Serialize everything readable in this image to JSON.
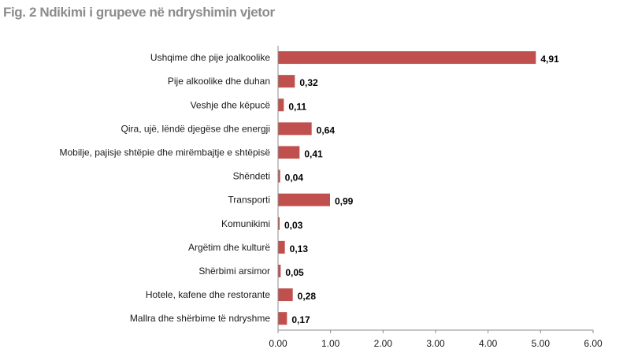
{
  "title": "Fig. 2 Ndikimi i grupeve në ndryshimin vjetor",
  "chart_data": {
    "type": "bar",
    "orientation": "horizontal",
    "categories": [
      "Ushqime dhe pije joalkoolike",
      "Pije alkoolike dhe duhan",
      "Veshje dhe këpucë",
      "Qira, ujë, lëndë djegëse dhe energji",
      "Mobilje, pajisje shtëpie dhe mirëmbajtje e shtëpisë",
      "Shëndeti",
      "Transporti",
      "Komunikimi",
      "Argëtim dhe kulturë",
      "Shërbimi arsimor",
      "Hotele, kafene dhe restorante",
      "Mallra dhe shërbime të ndryshme"
    ],
    "values": [
      4.91,
      0.32,
      0.11,
      0.64,
      0.41,
      0.04,
      0.99,
      0.03,
      0.13,
      0.05,
      0.28,
      0.17
    ],
    "value_labels": [
      "4,91",
      "0,32",
      "0,11",
      "0,64",
      "0,41",
      "0,04",
      "0,99",
      "0,03",
      "0,13",
      "0,05",
      "0,28",
      "0,17"
    ],
    "xlim": [
      0,
      6
    ],
    "xticks": [
      0,
      1,
      2,
      3,
      4,
      5,
      6
    ],
    "xtick_labels": [
      "0.00",
      "1.00",
      "2.00",
      "3.00",
      "4.00",
      "5.00",
      "6.00"
    ],
    "bar_color": "#c0504d",
    "grid": false,
    "legend": "none"
  }
}
